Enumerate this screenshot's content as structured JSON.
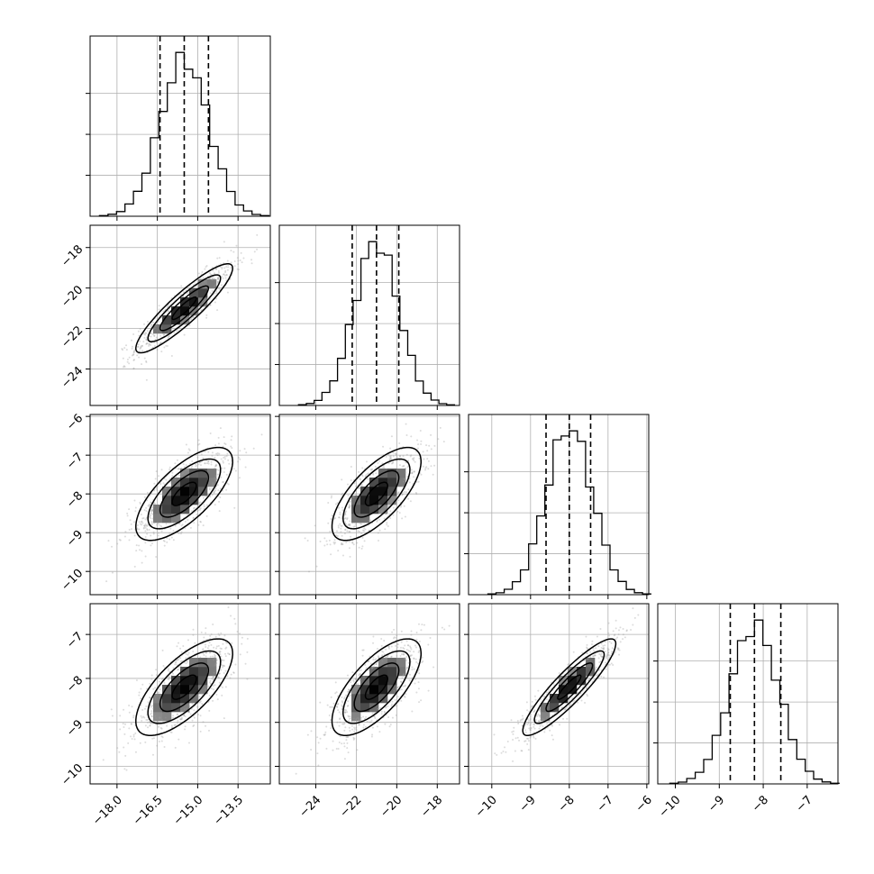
{
  "chart_data": {
    "type": "corner",
    "title": "",
    "parameters": [
      {
        "name": "",
        "mean": -15.5,
        "std": 0.9,
        "ticks": [
          -18.0,
          -16.5,
          -15.0,
          -13.5
        ],
        "tick_labels": [
          "−18.0",
          "−16.5",
          "−15.0",
          "−13.5"
        ],
        "range": [
          -19.0,
          -12.3
        ],
        "quantiles": [
          -16.4,
          -15.5,
          -14.6
        ]
      },
      {
        "name": "",
        "mean": -21.0,
        "std": 1.1,
        "ticks": [
          -24,
          -22,
          -20,
          -18
        ],
        "tick_labels": [
          "−24",
          "−22",
          "−20",
          "−18"
        ],
        "range": [
          -25.8,
          -16.9
        ],
        "quantiles": [
          -22.2,
          -21.0,
          -19.9
        ]
      },
      {
        "name": "",
        "mean": -8.0,
        "std": 0.6,
        "ticks": [
          -10,
          -9,
          -8,
          -7,
          -6
        ],
        "tick_labels": [
          "−10",
          "−9",
          "−8",
          "−7",
          "−6"
        ],
        "range": [
          -10.6,
          -5.95
        ],
        "quantiles": [
          -8.6,
          -8.0,
          -7.45
        ]
      },
      {
        "name": "",
        "mean": -8.2,
        "std": 0.55,
        "ticks": [
          -10,
          -9,
          -8,
          -7
        ],
        "tick_labels": [
          "−10",
          "−9",
          "−8",
          "−7"
        ],
        "range": [
          -10.4,
          -6.3
        ],
        "quantiles": [
          -8.75,
          -8.2,
          -7.6
        ]
      }
    ],
    "correlations": [
      [
        1,
        0.9,
        0.7,
        0.7
      ],
      [
        0.9,
        1,
        0.7,
        0.7
      ],
      [
        0.7,
        0.7,
        1,
        0.9
      ],
      [
        0.7,
        0.7,
        0.9,
        1
      ]
    ],
    "histogram_bins": 20,
    "grid": true,
    "colors": {
      "samples": "#9a9a9a",
      "lines": "#000000",
      "grid": "#b0b0b0",
      "density": "#000000"
    }
  }
}
